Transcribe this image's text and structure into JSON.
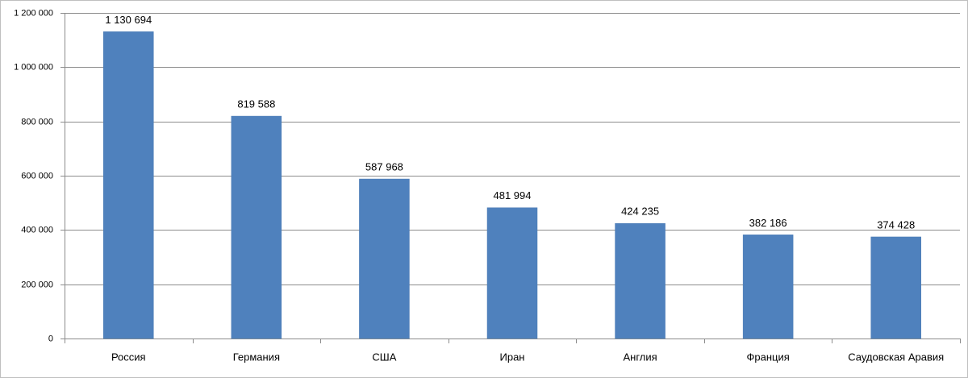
{
  "chart_data": {
    "type": "bar",
    "categories": [
      "Россия",
      "Германия",
      "США",
      "Иран",
      "Англия",
      "Франция",
      "Саудовская Аравия"
    ],
    "values": [
      1130694,
      819588,
      587968,
      481994,
      424235,
      382186,
      374428
    ],
    "value_labels": [
      "1 130 694",
      "819 588",
      "587 968",
      "481 994",
      "424 235",
      "382 186",
      "374 428"
    ],
    "color": "#4f81bd",
    "ylim": [
      0,
      1200000
    ],
    "yticks": [
      0,
      {
        "value": 200000,
        "label": "200 000"
      },
      {
        "value": 400000,
        "label": "400 000"
      },
      {
        "value": 600000,
        "label": "600 000"
      },
      {
        "value": 800000,
        "label": "800 000"
      },
      {
        "value": 1000000,
        "label": "1 000 000"
      },
      {
        "value": 1200000,
        "label": "1 200 000"
      }
    ],
    "grid": true
  }
}
